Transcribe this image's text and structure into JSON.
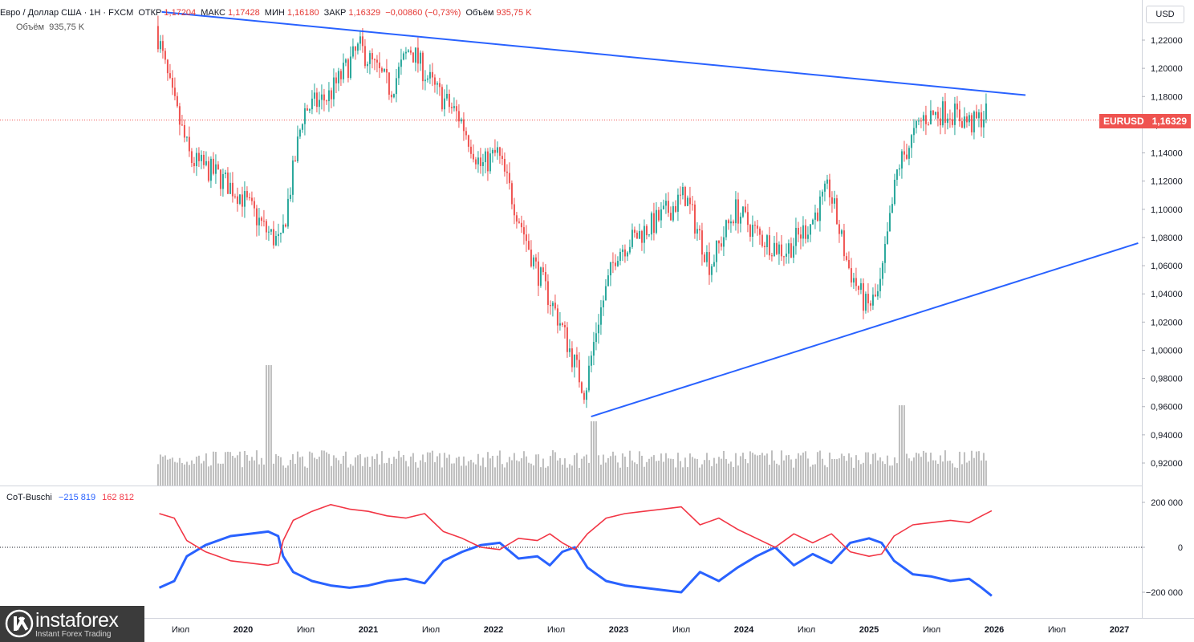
{
  "header": {
    "symbol": "Евро / Доллар США · 1Н · FXCM",
    "open_label": "ОТКР",
    "open": "1,17204",
    "high_label": "МАКС",
    "high": "1,17428",
    "low_label": "МИН",
    "low": "1,16180",
    "close_label": "ЗАКР",
    "close": "1,16329",
    "change": "−0,00860 (−0,73%)",
    "volume_label": "Объём",
    "volume": "935,75 K",
    "volume_row_label": "Объём",
    "volume_row_value": "935,75 K"
  },
  "currency_button": "USD",
  "current_price": {
    "symbol": "EURUSD",
    "value": "1,16329"
  },
  "indicator": {
    "name": "CoT-Buschi",
    "value_blue": "−215 819",
    "value_red": "162 812"
  },
  "logo": {
    "name": "instaforex",
    "tagline": "Instant Forex Trading"
  },
  "colors": {
    "up": "#26a69a",
    "down": "#ef5350",
    "trendline": "#2962ff",
    "cot_blue": "#2962ff",
    "cot_red": "#f23645",
    "volume": "#bdbdbd"
  },
  "chart_data": [
    {
      "type": "candlestick",
      "title": "EURUSD",
      "ylim": [
        0.9,
        1.24
      ],
      "y_ticks": [
        "1,22000",
        "1,20000",
        "1,18000",
        "1,16000",
        "1,14000",
        "1,12000",
        "1,10000",
        "1,08000",
        "1,06000",
        "1,04000",
        "1,02000",
        "1,00000",
        "0,98000",
        "0,96000",
        "0,94000",
        "0,92000"
      ],
      "x_ticks": [
        "Июл",
        "2020",
        "Июл",
        "2021",
        "Июл",
        "2022",
        "Июл",
        "2023",
        "Июл",
        "2024",
        "Июл",
        "2025",
        "Июл",
        "2026",
        "Июл",
        "2027"
      ],
      "anchors": [
        {
          "t": 2019.32,
          "p": 1.23
        },
        {
          "t": 2019.45,
          "p": 1.18
        },
        {
          "t": 2019.6,
          "p": 1.135
        },
        {
          "t": 2019.8,
          "p": 1.125
        },
        {
          "t": 2020.0,
          "p": 1.11
        },
        {
          "t": 2020.2,
          "p": 1.085
        },
        {
          "t": 2020.32,
          "p": 1.075
        },
        {
          "t": 2020.5,
          "p": 1.17
        },
        {
          "t": 2020.7,
          "p": 1.18
        },
        {
          "t": 2020.95,
          "p": 1.215
        },
        {
          "t": 2021.2,
          "p": 1.185
        },
        {
          "t": 2021.35,
          "p": 1.215
        },
        {
          "t": 2021.55,
          "p": 1.185
        },
        {
          "t": 2021.75,
          "p": 1.165
        },
        {
          "t": 2021.92,
          "p": 1.13
        },
        {
          "t": 2022.05,
          "p": 1.14
        },
        {
          "t": 2022.2,
          "p": 1.1
        },
        {
          "t": 2022.35,
          "p": 1.06
        },
        {
          "t": 2022.55,
          "p": 1.02
        },
        {
          "t": 2022.75,
          "p": 0.97
        },
        {
          "t": 2022.85,
          "p": 1.02
        },
        {
          "t": 2023.0,
          "p": 1.07
        },
        {
          "t": 2023.3,
          "p": 1.09
        },
        {
          "t": 2023.55,
          "p": 1.11
        },
        {
          "t": 2023.75,
          "p": 1.06
        },
        {
          "t": 2023.95,
          "p": 1.1
        },
        {
          "t": 2024.15,
          "p": 1.08
        },
        {
          "t": 2024.35,
          "p": 1.07
        },
        {
          "t": 2024.55,
          "p": 1.09
        },
        {
          "t": 2024.7,
          "p": 1.115
        },
        {
          "t": 2024.85,
          "p": 1.06
        },
        {
          "t": 2025.0,
          "p": 1.03
        },
        {
          "t": 2025.1,
          "p": 1.04
        },
        {
          "t": 2025.25,
          "p": 1.13
        },
        {
          "t": 2025.45,
          "p": 1.165
        },
        {
          "t": 2025.65,
          "p": 1.17
        },
        {
          "t": 2025.85,
          "p": 1.16
        },
        {
          "t": 2025.95,
          "p": 1.168
        }
      ],
      "trendlines": [
        {
          "from": {
            "t": 2019.35,
            "p": 1.24
          },
          "to": {
            "t": 2026.25,
            "p": 1.181
          }
        },
        {
          "from": {
            "t": 2022.78,
            "p": 0.953
          },
          "to": {
            "t": 2027.15,
            "p": 1.076
          }
        }
      ],
      "last_price": 1.16329
    },
    {
      "type": "line",
      "title": "CoT-Buschi",
      "ylim": [
        -250000,
        250000
      ],
      "y_ticks": [
        "200 000",
        "0",
        "−200 000"
      ],
      "series": [
        {
          "name": "blue",
          "points": [
            [
              2019.33,
              -180000
            ],
            [
              2019.45,
              -150000
            ],
            [
              2019.55,
              -40000
            ],
            [
              2019.7,
              10000
            ],
            [
              2019.9,
              50000
            ],
            [
              2020.05,
              60000
            ],
            [
              2020.2,
              70000
            ],
            [
              2020.28,
              50000
            ],
            [
              2020.32,
              -40000
            ],
            [
              2020.4,
              -110000
            ],
            [
              2020.55,
              -150000
            ],
            [
              2020.7,
              -170000
            ],
            [
              2020.85,
              -180000
            ],
            [
              2021.0,
              -170000
            ],
            [
              2021.15,
              -150000
            ],
            [
              2021.3,
              -140000
            ],
            [
              2021.45,
              -160000
            ],
            [
              2021.6,
              -60000
            ],
            [
              2021.75,
              -20000
            ],
            [
              2021.9,
              10000
            ],
            [
              2022.05,
              20000
            ],
            [
              2022.2,
              -50000
            ],
            [
              2022.35,
              -40000
            ],
            [
              2022.45,
              -80000
            ],
            [
              2022.55,
              -20000
            ],
            [
              2022.65,
              0
            ],
            [
              2022.75,
              -90000
            ],
            [
              2022.9,
              -150000
            ],
            [
              2023.05,
              -170000
            ],
            [
              2023.2,
              -180000
            ],
            [
              2023.35,
              -190000
            ],
            [
              2023.5,
              -200000
            ],
            [
              2023.65,
              -110000
            ],
            [
              2023.8,
              -150000
            ],
            [
              2023.95,
              -90000
            ],
            [
              2024.1,
              -40000
            ],
            [
              2024.25,
              0
            ],
            [
              2024.4,
              -80000
            ],
            [
              2024.55,
              -30000
            ],
            [
              2024.7,
              -70000
            ],
            [
              2024.85,
              20000
            ],
            [
              2025.0,
              40000
            ],
            [
              2025.1,
              20000
            ],
            [
              2025.2,
              -60000
            ],
            [
              2025.35,
              -120000
            ],
            [
              2025.5,
              -130000
            ],
            [
              2025.65,
              -150000
            ],
            [
              2025.8,
              -140000
            ],
            [
              2025.9,
              -180000
            ],
            [
              2025.98,
              -215819
            ]
          ]
        },
        {
          "name": "red",
          "points": [
            [
              2019.33,
              150000
            ],
            [
              2019.45,
              130000
            ],
            [
              2019.55,
              30000
            ],
            [
              2019.7,
              -20000
            ],
            [
              2019.9,
              -60000
            ],
            [
              2020.05,
              -70000
            ],
            [
              2020.2,
              -80000
            ],
            [
              2020.28,
              -70000
            ],
            [
              2020.32,
              30000
            ],
            [
              2020.4,
              120000
            ],
            [
              2020.55,
              160000
            ],
            [
              2020.7,
              190000
            ],
            [
              2020.85,
              170000
            ],
            [
              2021.0,
              160000
            ],
            [
              2021.15,
              140000
            ],
            [
              2021.3,
              130000
            ],
            [
              2021.45,
              150000
            ],
            [
              2021.6,
              70000
            ],
            [
              2021.75,
              40000
            ],
            [
              2021.9,
              0
            ],
            [
              2022.05,
              -10000
            ],
            [
              2022.2,
              40000
            ],
            [
              2022.35,
              30000
            ],
            [
              2022.45,
              60000
            ],
            [
              2022.55,
              20000
            ],
            [
              2022.65,
              -10000
            ],
            [
              2022.75,
              60000
            ],
            [
              2022.9,
              130000
            ],
            [
              2023.05,
              150000
            ],
            [
              2023.2,
              160000
            ],
            [
              2023.35,
              170000
            ],
            [
              2023.5,
              180000
            ],
            [
              2023.65,
              100000
            ],
            [
              2023.8,
              130000
            ],
            [
              2023.95,
              80000
            ],
            [
              2024.1,
              40000
            ],
            [
              2024.25,
              0
            ],
            [
              2024.4,
              60000
            ],
            [
              2024.55,
              20000
            ],
            [
              2024.7,
              60000
            ],
            [
              2024.85,
              -20000
            ],
            [
              2025.0,
              -40000
            ],
            [
              2025.1,
              -30000
            ],
            [
              2025.2,
              50000
            ],
            [
              2025.35,
              100000
            ],
            [
              2025.5,
              110000
            ],
            [
              2025.65,
              120000
            ],
            [
              2025.8,
              110000
            ],
            [
              2025.9,
              140000
            ],
            [
              2025.98,
              162812
            ]
          ]
        }
      ]
    }
  ]
}
